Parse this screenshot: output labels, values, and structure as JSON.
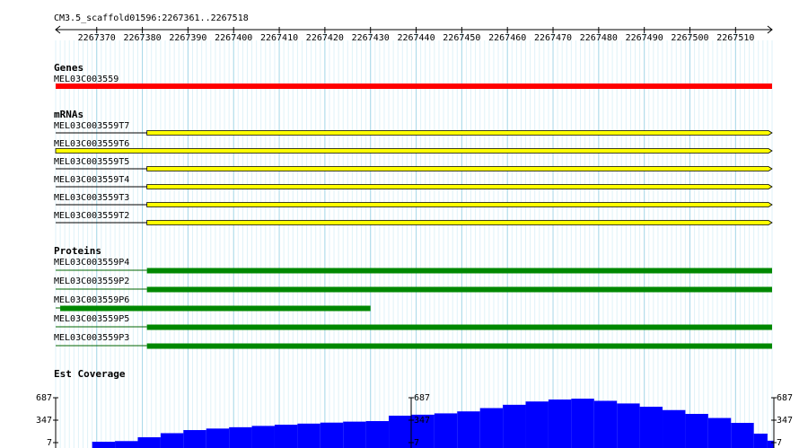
{
  "header": {
    "title": "CM3.5_scaffold01596:2267361..2267518"
  },
  "ruler": {
    "range": [
      2267361,
      2267518
    ],
    "ticks": [
      2267370,
      2267380,
      2267390,
      2267400,
      2267410,
      2267420,
      2267430,
      2267440,
      2267450,
      2267460,
      2267470,
      2267480,
      2267490,
      2267500,
      2267510
    ]
  },
  "genes": {
    "title": "Genes",
    "features": [
      {
        "label": "MEL03C003559",
        "start": 2267361,
        "end": 2267518
      }
    ]
  },
  "mrnas": {
    "title": "mRNAs",
    "features": [
      {
        "label": "MEL03C003559T7",
        "start": 2267381,
        "end": 2267518
      },
      {
        "label": "MEL03C003559T6",
        "start": 2267361,
        "end": 2267518
      },
      {
        "label": "MEL03C003559T5",
        "start": 2267381,
        "end": 2267518
      },
      {
        "label": "MEL03C003559T4",
        "start": 2267381,
        "end": 2267518
      },
      {
        "label": "MEL03C003559T3",
        "start": 2267381,
        "end": 2267518
      },
      {
        "label": "MEL03C003559T2",
        "start": 2267381,
        "end": 2267518
      }
    ]
  },
  "proteins": {
    "title": "Proteins",
    "features": [
      {
        "label": "MEL03C003559P4",
        "start": 2267381,
        "end": 2267518
      },
      {
        "label": "MEL03C003559P2",
        "start": 2267381,
        "end": 2267518
      },
      {
        "label": "MEL03C003559P6",
        "start": 2267362,
        "end": 2267430
      },
      {
        "label": "MEL03C003559P5",
        "start": 2267381,
        "end": 2267518
      },
      {
        "label": "MEL03C003559P3",
        "start": 2267381,
        "end": 2267518
      }
    ]
  },
  "coverage": {
    "title": "Est Coverage",
    "ylim": [
      7,
      687
    ],
    "yticks": [
      687,
      347,
      7
    ],
    "x": [
      2267369,
      2267374,
      2267379,
      2267384,
      2267389,
      2267394,
      2267399,
      2267404,
      2267409,
      2267414,
      2267419,
      2267424,
      2267429,
      2267434,
      2267439,
      2267444,
      2267449,
      2267454,
      2267459,
      2267464,
      2267469,
      2267474,
      2267479,
      2267484,
      2267489,
      2267494,
      2267499,
      2267504,
      2267509,
      2267514,
      2267517
    ],
    "values": [
      20,
      30,
      88,
      150,
      197,
      220,
      240,
      260,
      278,
      295,
      310,
      325,
      333,
      415,
      430,
      450,
      480,
      530,
      580,
      630,
      660,
      673,
      640,
      600,
      550,
      500,
      442,
      380,
      306,
      143,
      36
    ]
  }
}
